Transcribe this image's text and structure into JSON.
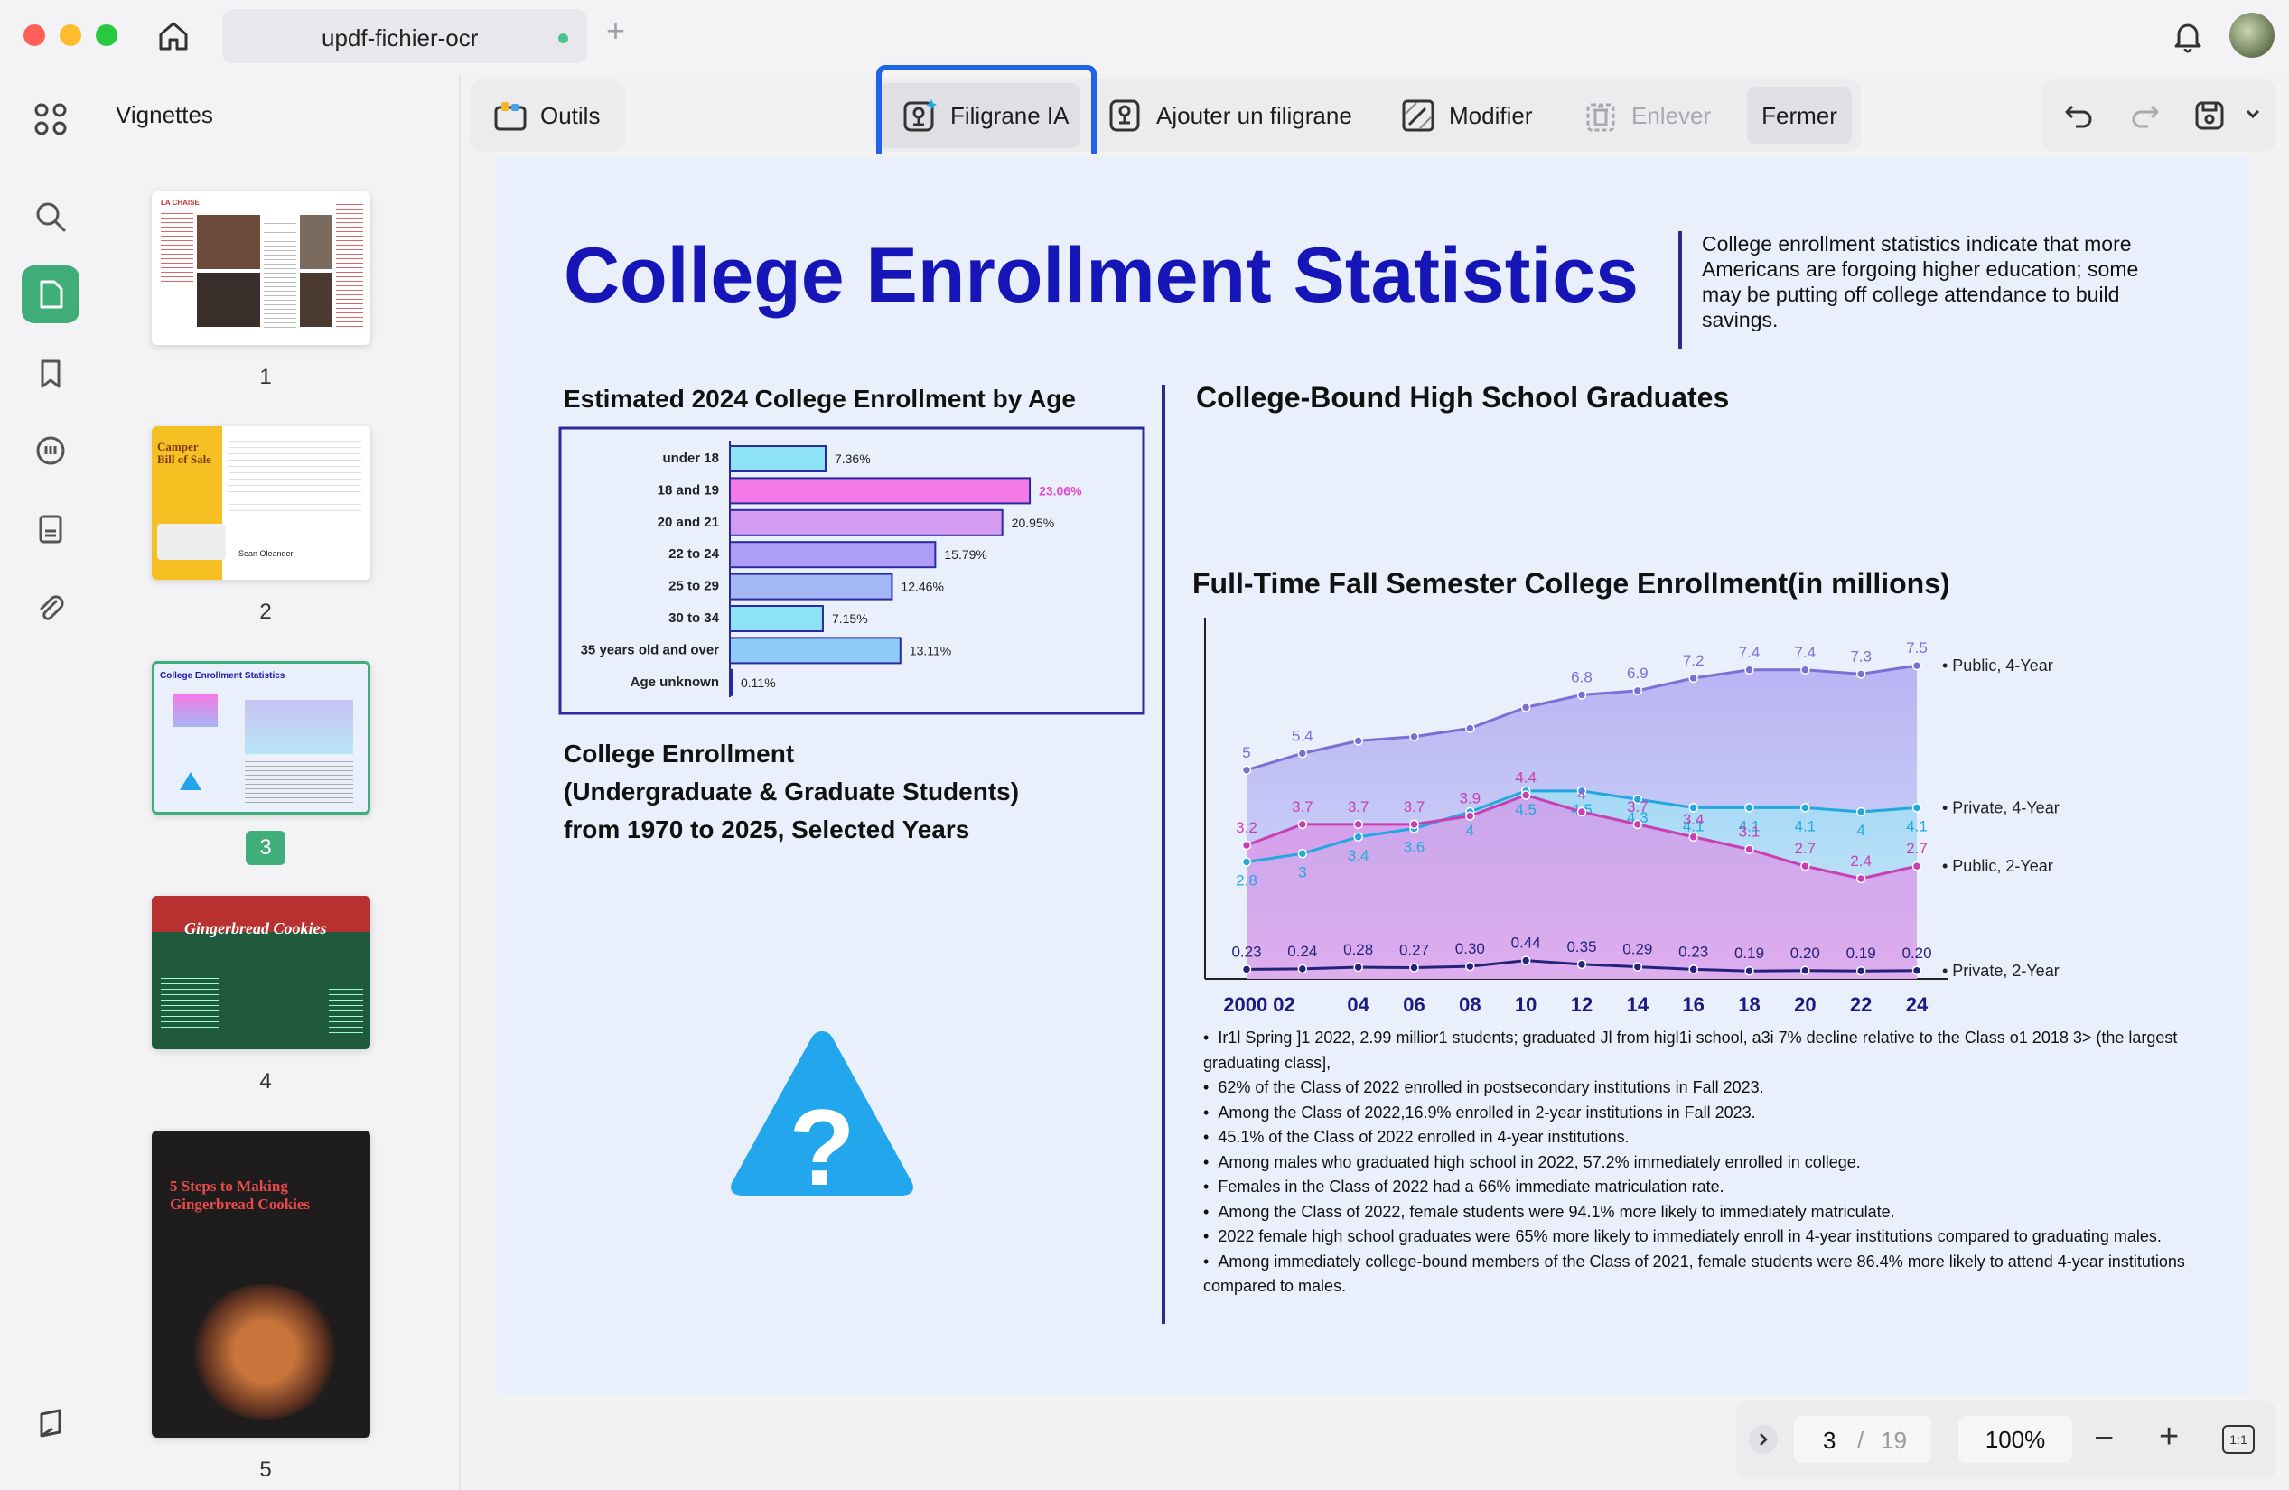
{
  "window": {
    "tab_title": "updf-fichier-ocr"
  },
  "sidebar": {
    "title": "Vignettes",
    "pages": [
      "1",
      "2",
      "3",
      "4",
      "5"
    ],
    "active_page": "3"
  },
  "thumbnails": {
    "p1": {
      "header": "LA CHAISE"
    },
    "p2": {
      "title": "Camper Bill of Sale",
      "signer": "Sean Oleander"
    },
    "p3": {
      "title": "College Enrollment Statistics"
    },
    "p4": {
      "title": "Gingerbread Cookies"
    },
    "p5": {
      "title": "5 Steps to Making Gingerbread Cookies"
    }
  },
  "toolbar": {
    "outils": "Outils",
    "filigrane_ia": "Filigrane IA",
    "ajouter": "Ajouter un filigrane",
    "modifier": "Modifier",
    "enlever": "Enlever",
    "fermer": "Fermer"
  },
  "status": {
    "page_current": "3",
    "page_sep": "/",
    "page_total": "19",
    "zoom": "100%",
    "fit": "1:1"
  },
  "doc": {
    "title": "College Enrollment Statistics",
    "intro": "College enrollment statistics indicate that more Americans are forgoing higher education; some may be putting off college attendance to build savings.",
    "age_heading": "Estimated 2024 College Enrollment by Age",
    "graduates_heading": "College-Bound High School Graduates",
    "enrollment_heading_1": "College Enrollment",
    "enrollment_heading_2": "(Undergraduate & Graduate Students)",
    "enrollment_heading_3": "from 1970 to 2025, Selected Years",
    "fulltime_heading": "Full-Time Fall Semester College Enrollment(in millions)",
    "bullets": [
      "Ir1l Spring ]1 2022, 2.99 millior1 students; graduated Jl from higl1i school, a3i 7% decline relative to the Class o1 2018 3> (the largest graduating class],",
      "62% of the Class of 2022 enrolled in postsecondary institutions in Fall 2023.",
      "Among the Class of 2022,16.9% enrolled in 2-year institutions in Fall 2023.",
      "45.1% of the Class of 2022 enrolled in 4-year institutions.",
      "Among males who graduated high school in 2022, 57.2% immediately enrolled in college.",
      "Females in the Class of 2022 had a 66% immediate matriculation rate.",
      "Among the Class of 2022, female students were 94.1% more likely to immediately matriculate.",
      "2022 female high school graduates were 65% more likely to immediately enroll in 4-year institutions compared to graduating males.",
      "Among immediately college-bound members of the Class of 2021, female students were 86.4% more likely to attend 4-year institutions compared to males."
    ]
  },
  "chart_data": [
    {
      "type": "bar",
      "title": "Estimated 2024 College Enrollment by Age",
      "categories": [
        "under 18",
        "18 and 19",
        "20 and 21",
        "22 to 24",
        "25 to 29",
        "30 to 34",
        "35 years old and over",
        "Age unknown"
      ],
      "values": [
        7.36,
        23.06,
        20.95,
        15.79,
        12.46,
        7.15,
        13.11,
        0.11
      ],
      "value_labels": [
        "7.36%",
        "23.06%",
        "20.95%",
        "15.79%",
        "12.46%",
        "7.15%",
        "13.11%",
        "0.11%"
      ],
      "colors": [
        "#8ee2f6",
        "#f47ae8",
        "#d59af2",
        "#ad9df4",
        "#a3b6f5",
        "#8ee2f6",
        "#8ecbf6",
        "#8ee2f6"
      ],
      "xlim": [
        0,
        25
      ]
    },
    {
      "type": "area",
      "title": "Full-Time Fall Semester College Enrollment(in millions)",
      "x_labels": [
        "2000",
        "02",
        "04",
        "06",
        "08",
        "10",
        "12",
        "14",
        "16",
        "18",
        "20",
        "22",
        "24"
      ],
      "x_tick_labels": [
        "2000 02",
        "04",
        "06",
        "08",
        "10",
        "12",
        "14",
        "16",
        "18",
        "20",
        "22",
        "24"
      ],
      "x": [
        2000,
        2002,
        2004,
        2006,
        2008,
        2010,
        2012,
        2014,
        2016,
        2018,
        2020,
        2022,
        2024
      ],
      "series": [
        {
          "name": "Public, 4-Year",
          "values": [
            5,
            5.4,
            5.7,
            5.8,
            6.0,
            6.5,
            6.8,
            6.9,
            7.2,
            7.4,
            7.4,
            7.3,
            7.5
          ],
          "labels": [
            "5",
            "5.4",
            "",
            "",
            "",
            "",
            "6.8",
            "6.9",
            "7.2",
            "7.4",
            "7.4",
            "7.3",
            "7.5"
          ],
          "color": "#7b6fd6"
        },
        {
          "name": "Private, 4-Year",
          "values": [
            2.8,
            3,
            3.4,
            3.6,
            4,
            4.5,
            4.5,
            4.3,
            4.1,
            4.1,
            4.1,
            4,
            4.1
          ],
          "labels": [
            "2.8",
            "3",
            "3.4",
            "3.6",
            "4",
            "4.5",
            "4.5",
            "4.3",
            "4.1",
            "4.1",
            "4.1",
            "4",
            "4.1"
          ],
          "color": "#21a9df"
        },
        {
          "name": "Public, 2-Year",
          "values": [
            3.2,
            3.7,
            3.7,
            3.7,
            3.9,
            4.4,
            4,
            3.7,
            3.4,
            3.1,
            2.7,
            2.4,
            2.7
          ],
          "labels": [
            "3.2",
            "3.7",
            "3.7",
            "3.7",
            "3.9",
            "4.4",
            "4",
            "3.7",
            "3.4",
            "3.1",
            "2.7",
            "2.4",
            "2.7"
          ],
          "color": "#c83fb4"
        },
        {
          "name": "Private, 2-Year",
          "values": [
            0.23,
            0.24,
            0.28,
            0.27,
            0.3,
            0.44,
            0.35,
            0.29,
            0.23,
            0.19,
            0.2,
            0.19,
            0.2
          ],
          "labels": [
            "0.23",
            "0.24",
            "0.28",
            "0.27",
            "0.30",
            "0.44",
            "0.35",
            "0.29",
            "0.23",
            "0.19",
            "0.20",
            "0.19",
            "0.20"
          ],
          "color": "#23237a"
        }
      ],
      "ylim": [
        0,
        8
      ]
    }
  ]
}
